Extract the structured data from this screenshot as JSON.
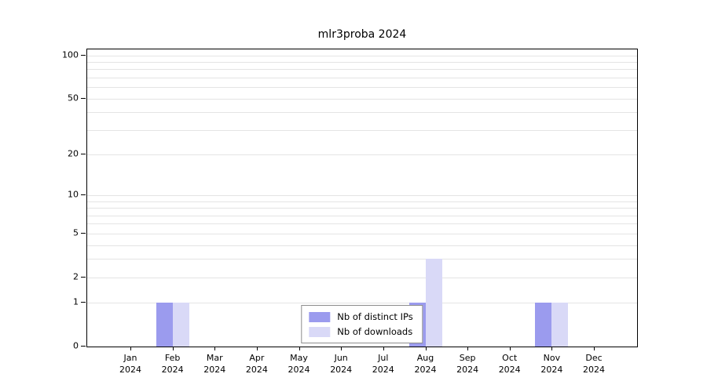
{
  "chart_data": {
    "type": "bar",
    "title": "mlr3proba 2024",
    "categories": [
      "Jan",
      "Feb",
      "Mar",
      "Apr",
      "May",
      "Jun",
      "Jul",
      "Aug",
      "Sep",
      "Oct",
      "Nov",
      "Dec"
    ],
    "year_label": "2024",
    "series": [
      {
        "name": "Nb of distinct IPs",
        "color": "#9b9bee",
        "values": [
          0,
          1,
          0,
          0,
          0,
          0,
          0,
          1,
          0,
          0,
          1,
          0
        ]
      },
      {
        "name": "Nb of downloads",
        "color": "#d9d9f7",
        "values": [
          0,
          1,
          0,
          0,
          0,
          0,
          0,
          3,
          0,
          0,
          1,
          0
        ]
      }
    ],
    "y_ticks": [
      0,
      1,
      2,
      5,
      10,
      20,
      50,
      100
    ],
    "minor_gridlines": [
      1,
      2,
      3,
      4,
      5,
      6,
      7,
      8,
      9,
      10,
      20,
      30,
      40,
      50,
      60,
      70,
      80,
      90,
      100
    ],
    "scale": "log10(1+v)",
    "ylim": [
      0,
      100
    ],
    "grid": true,
    "legend_position": "bottom-center"
  }
}
